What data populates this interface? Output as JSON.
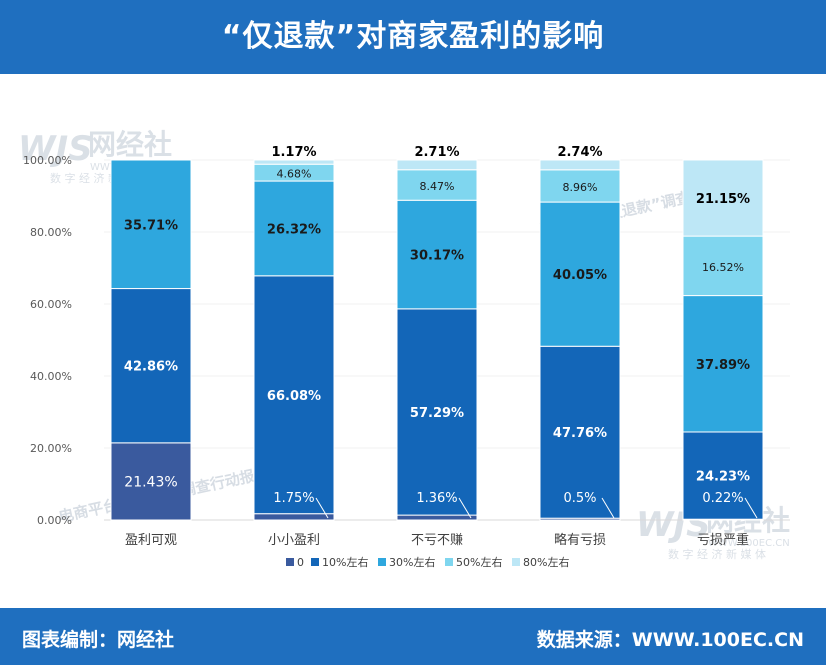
{
  "header": {
    "title": "“仅退款”对商家盈利的影响"
  },
  "footer": {
    "editor": "图表编制：网经社",
    "source": "数据来源：WWW.100EC.CN"
  },
  "watermark": {
    "brand": "网经社",
    "url": "WWW.100EC.CN",
    "tagline": "数 字 经 济 新 媒 体",
    "stamp": "电商平台“仅退款”调查行动报告"
  },
  "colors": {
    "c0": "#3a5a9e",
    "c10": "#1366b8",
    "c30": "#2ea7de",
    "c50": "#7fd6ef",
    "c80": "#bde7f6"
  },
  "chart_data": {
    "type": "bar",
    "stacked": true,
    "title": "“仅退款”对商家盈利的影响",
    "categories": [
      "盈利可观",
      "小小盈利",
      "不亏不赚",
      "略有亏损",
      "亏损严重"
    ],
    "ylim": [
      0,
      100
    ],
    "yticks": [
      "0.00%",
      "20.00%",
      "40.00%",
      "60.00%",
      "80.00%",
      "100.00%"
    ],
    "ytick_values": [
      0,
      20,
      40,
      60,
      80,
      100
    ],
    "legend_position": "bottom",
    "series": [
      {
        "name": "0",
        "color": "#3a5a9e",
        "values": [
          21.43,
          1.75,
          1.36,
          0.5,
          0.22
        ],
        "labels": [
          "21.43%",
          "1.75%",
          "1.36%",
          "0.5%",
          "0.22%"
        ]
      },
      {
        "name": "10%左右",
        "color": "#1366b8",
        "values": [
          42.86,
          66.08,
          57.29,
          47.76,
          24.23
        ],
        "labels": [
          "42.86%",
          "66.08%",
          "57.29%",
          "47.76%",
          "24.23%"
        ]
      },
      {
        "name": "30%左右",
        "color": "#2ea7de",
        "values": [
          35.71,
          26.32,
          30.17,
          40.05,
          37.89
        ],
        "labels": [
          "35.71%",
          "26.32%",
          "30.17%",
          "40.05%",
          "37.89%"
        ]
      },
      {
        "name": "50%左右",
        "color": "#7fd6ef",
        "values": [
          0,
          4.68,
          8.47,
          8.96,
          16.52
        ],
        "labels": [
          "",
          "4.68%",
          "8.47%",
          "8.96%",
          "16.52%"
        ]
      },
      {
        "name": "80%左右",
        "color": "#bde7f6",
        "values": [
          0,
          1.17,
          2.71,
          2.74,
          21.15
        ],
        "labels": [
          "",
          "1.17%",
          "2.71%",
          "2.74%",
          "21.15%"
        ]
      }
    ]
  }
}
